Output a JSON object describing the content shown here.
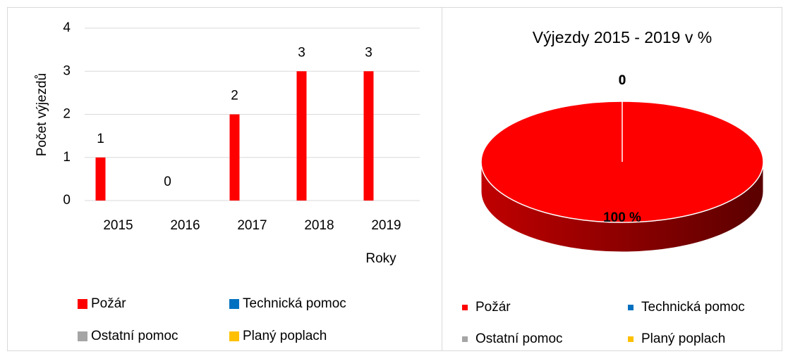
{
  "chart_data": [
    {
      "type": "bar",
      "y_label": "Počet výjezdů",
      "x_label": "Roky",
      "categories": [
        "2015",
        "2016",
        "2017",
        "2018",
        "2019"
      ],
      "series": [
        {
          "name": "Požár",
          "color": "#ff0000",
          "values": [
            1,
            0,
            2,
            3,
            3
          ]
        },
        {
          "name": "Technická pomoc",
          "color": "#0070c0",
          "values": [
            0,
            0,
            0,
            0,
            0
          ]
        },
        {
          "name": "Ostatní pomoc",
          "color": "#a5a5a5",
          "values": [
            0,
            0,
            0,
            0,
            0
          ]
        },
        {
          "name": "Planý poplach",
          "color": "#ffc000",
          "values": [
            0,
            0,
            0,
            0,
            0
          ]
        }
      ],
      "ylim": [
        0,
        4
      ],
      "yticks": [
        0,
        1,
        2,
        3,
        4
      ],
      "grid": true
    },
    {
      "type": "pie",
      "title": "Výjezdy 2015 - 2019 v %",
      "categories": [
        "Požár",
        "Technická pomoc",
        "Ostatní pomoc",
        "Planý poplach"
      ],
      "colors": [
        "#ff0000",
        "#0070c0",
        "#a5a5a5",
        "#ffc000"
      ],
      "values": [
        100,
        0,
        0,
        0
      ],
      "value_labels": [
        "100 %",
        "0",
        "0",
        "0"
      ]
    }
  ]
}
